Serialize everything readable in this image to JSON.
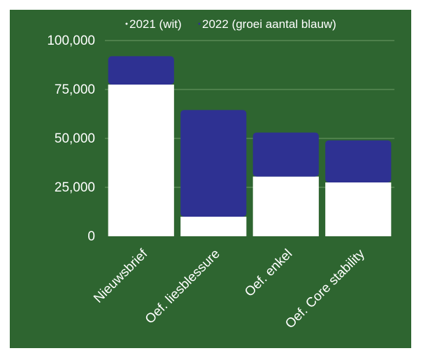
{
  "chart_data": {
    "type": "bar",
    "stacked": true,
    "title": "",
    "xlabel": "",
    "ylabel": "",
    "categories": [
      "Nieuwsbrief",
      "Oef. liesblessure",
      "Oef. enkel",
      "Oef. Core stability"
    ],
    "series": [
      {
        "name": "2021 (wit)",
        "values": [
          77500,
          10000,
          30500,
          27500
        ]
      },
      {
        "name": "2022 (groei aantal blauw)",
        "values": [
          14500,
          54500,
          22500,
          21500
        ]
      }
    ],
    "y_ticks": [
      "0",
      "25,000",
      "50,000",
      "75,000",
      "100,000"
    ],
    "y_tick_values": [
      0,
      25000,
      50000,
      75000,
      100000
    ],
    "ylim": [
      0,
      100000
    ],
    "grid": true,
    "legend_position": "top",
    "colors": {
      "background": "#2e6530",
      "series_2021": "#ffffff",
      "series_2022": "#2e3192",
      "gridline": "#6f9a66",
      "text": "#ffffff"
    }
  }
}
